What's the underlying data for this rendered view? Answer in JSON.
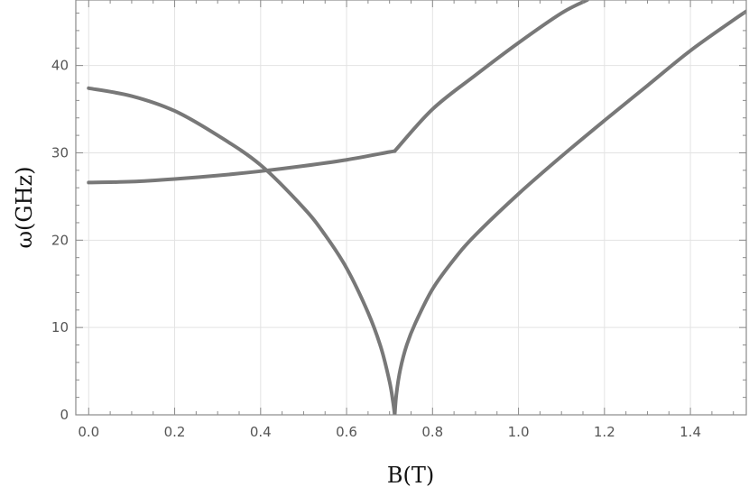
{
  "chart_data": {
    "type": "line",
    "title": "",
    "xlabel": "B(T)",
    "ylabel": "ω(GHz)",
    "xlim": [
      -0.03,
      1.53
    ],
    "ylim": [
      0,
      47.5
    ],
    "x_ticks": [
      0.0,
      0.2,
      0.4,
      0.6,
      0.8,
      1.0,
      1.2,
      1.4
    ],
    "x_tick_labels": [
      "0.0",
      "0.2",
      "0.4",
      "0.6",
      "0.8",
      "1.0",
      "1.2",
      "1.4"
    ],
    "y_ticks": [
      0,
      10,
      20,
      30,
      40
    ],
    "y_tick_labels": [
      "0",
      "10",
      "20",
      "30",
      "40"
    ],
    "grid": true,
    "line_color": "#787878",
    "series": [
      {
        "x": [
          0.0,
          0.1,
          0.2,
          0.3,
          0.4,
          0.5,
          0.55,
          0.6,
          0.65,
          0.68,
          0.7,
          0.708,
          0.712
        ],
        "y": [
          37.4,
          36.5,
          34.8,
          32.0,
          28.6,
          23.7,
          20.6,
          16.8,
          11.7,
          7.7,
          3.8,
          1.5,
          0.0
        ]
      },
      {
        "x": [
          0.0,
          0.1,
          0.2,
          0.3,
          0.4,
          0.5,
          0.6,
          0.7,
          0.712
        ],
        "y": [
          26.6,
          26.7,
          27.0,
          27.4,
          27.9,
          28.5,
          29.2,
          30.1,
          30.2
        ]
      },
      {
        "x": [
          0.712,
          0.8,
          0.9,
          1.0,
          1.1,
          1.16
        ],
        "y": [
          30.2,
          35.0,
          38.9,
          42.6,
          46.0,
          47.5
        ]
      },
      {
        "x": [
          0.712,
          0.716,
          0.725,
          0.74,
          0.76,
          0.8,
          0.85,
          0.9,
          1.0,
          1.1,
          1.2,
          1.3,
          1.4,
          1.5,
          1.53
        ],
        "y": [
          0.0,
          2.4,
          5.2,
          8.0,
          10.5,
          14.4,
          17.8,
          20.6,
          25.3,
          29.6,
          33.7,
          37.7,
          41.7,
          45.2,
          46.2
        ]
      }
    ]
  }
}
